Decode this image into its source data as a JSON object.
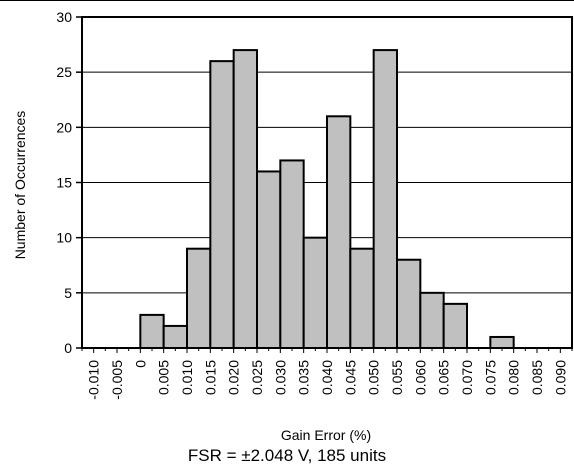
{
  "caption": "FSR = ±2.048 V, 185 units",
  "chart_data": {
    "type": "bar",
    "title": "",
    "xlabel": "Gain Error (%)",
    "ylabel": "Number of Occurrences",
    "ylim": [
      0,
      30
    ],
    "yticks": [
      0,
      5,
      10,
      15,
      20,
      25,
      30
    ],
    "grid": "horizontal",
    "categories": [
      "-0.010",
      "-0.005",
      "0",
      "0.005",
      "0.010",
      "0.015",
      "0.020",
      "0.025",
      "0.030",
      "0.035",
      "0.040",
      "0.045",
      "0.050",
      "0.055",
      "0.060",
      "0.065",
      "0.070",
      "0.075",
      "0.080",
      "0.085",
      "0.090"
    ],
    "bins": [
      {
        "from": "-0.005",
        "to": "0",
        "value": 0
      },
      {
        "from": "0",
        "to": "0.005",
        "value": 3
      },
      {
        "from": "0.005",
        "to": "0.010",
        "value": 2
      },
      {
        "from": "0.010",
        "to": "0.015",
        "value": 9
      },
      {
        "from": "0.015",
        "to": "0.020",
        "value": 26
      },
      {
        "from": "0.020",
        "to": "0.025",
        "value": 27
      },
      {
        "from": "0.025",
        "to": "0.030",
        "value": 16
      },
      {
        "from": "0.030",
        "to": "0.035",
        "value": 17
      },
      {
        "from": "0.035",
        "to": "0.040",
        "value": 10
      },
      {
        "from": "0.040",
        "to": "0.045",
        "value": 21
      },
      {
        "from": "0.045",
        "to": "0.050",
        "value": 9
      },
      {
        "from": "0.050",
        "to": "0.055",
        "value": 27
      },
      {
        "from": "0.055",
        "to": "0.060",
        "value": 8
      },
      {
        "from": "0.060",
        "to": "0.065",
        "value": 5
      },
      {
        "from": "0.065",
        "to": "0.070",
        "value": 4
      },
      {
        "from": "0.070",
        "to": "0.075",
        "value": 0
      },
      {
        "from": "0.075",
        "to": "0.080",
        "value": 1
      },
      {
        "from": "0.080",
        "to": "0.085",
        "value": 0
      },
      {
        "from": "0.085",
        "to": "0.090",
        "value": 0
      }
    ],
    "bar_color": "#c0c0c0"
  }
}
